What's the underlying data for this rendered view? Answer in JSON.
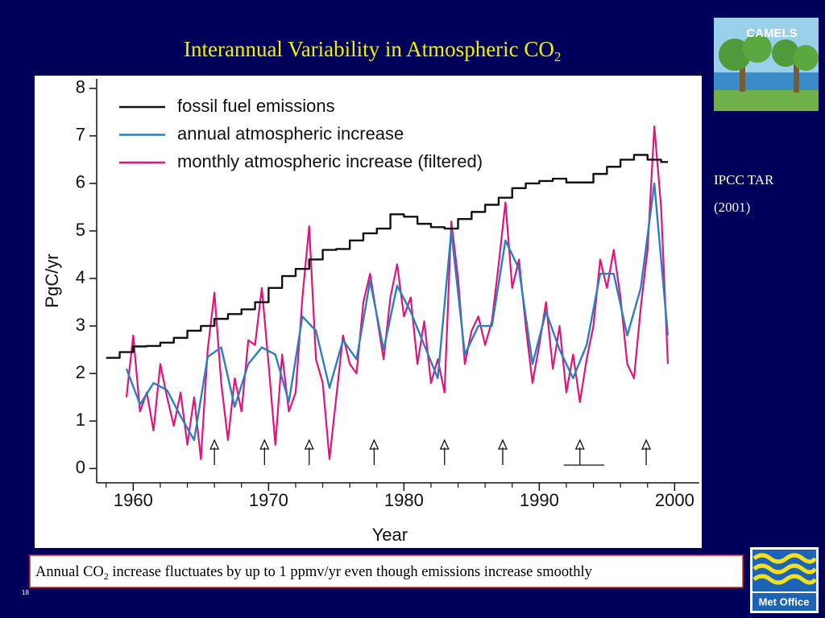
{
  "slide": {
    "title": "Interannual Variability in Atmospheric CO",
    "title_sub": "2",
    "logo_text": "CAMELS",
    "source_line1": "IPCC TAR",
    "source_line2": "(2001)",
    "caption_start": "Annual CO",
    "caption_sub": "2",
    "caption_end": " increase fluctuates by up to 1 ppmv/yr even though emissions increase smoothly",
    "page_number": "18",
    "org": "Met Office"
  },
  "chart_data": {
    "type": "line",
    "xlabel": "Year",
    "ylabel": "PgC/yr",
    "xlim": [
      1957.3,
      2001.8
    ],
    "ylim": [
      -0.3,
      8.2
    ],
    "xticks": [
      1960,
      1970,
      1980,
      1990,
      2000
    ],
    "xminorticks": [
      1958,
      1962,
      1964,
      1966,
      1968,
      1972,
      1974,
      1976,
      1978,
      1982,
      1984,
      1986,
      1988,
      1992,
      1994,
      1996,
      1998
    ],
    "yticks": [
      0,
      1,
      2,
      3,
      4,
      5,
      6,
      7,
      8
    ],
    "legend": "upper left",
    "arrows_x": [
      1966,
      1969.7,
      1973,
      1977.8,
      1983,
      1987.3,
      1993,
      1997.9
    ],
    "span_x": [
      1991.8,
      1994.8
    ],
    "series": [
      {
        "name": "fossil fuel emissions",
        "color": "#111111",
        "drawstyle": "steps-post",
        "x": [
          1958,
          1959,
          1960,
          1961,
          1962,
          1963,
          1964,
          1965,
          1966,
          1967,
          1968,
          1969,
          1970,
          1971,
          1972,
          1973,
          1974,
          1975,
          1976,
          1977,
          1978,
          1979,
          1980,
          1981,
          1982,
          1983,
          1984,
          1985,
          1986,
          1987,
          1988,
          1989,
          1990,
          1991,
          1992,
          1993,
          1994,
          1995,
          1996,
          1997,
          1998,
          1999
        ],
        "values": [
          2.33,
          2.45,
          2.57,
          2.58,
          2.65,
          2.75,
          2.9,
          3.0,
          3.15,
          3.25,
          3.35,
          3.5,
          3.8,
          4.05,
          4.2,
          4.4,
          4.6,
          4.62,
          4.8,
          4.95,
          5.05,
          5.35,
          5.3,
          5.15,
          5.08,
          5.05,
          5.25,
          5.4,
          5.55,
          5.7,
          5.9,
          6.0,
          6.05,
          6.1,
          6.02,
          6.02,
          6.2,
          6.35,
          6.5,
          6.6,
          6.5,
          6.45
        ]
      },
      {
        "name": "annual atmospheric increase",
        "color": "#2a7fc0",
        "x": [
          1959.5,
          1960.5,
          1961.5,
          1962.5,
          1963.5,
          1964.5,
          1965.5,
          1966.5,
          1967.5,
          1968.5,
          1969.5,
          1970.5,
          1971.5,
          1972.5,
          1973.5,
          1974.5,
          1975.5,
          1976.5,
          1977.5,
          1978.5,
          1979.5,
          1980.5,
          1981.5,
          1982.5,
          1983.5,
          1984.5,
          1985.5,
          1986.5,
          1987.5,
          1988.5,
          1989.5,
          1990.5,
          1991.5,
          1992.5,
          1993.5,
          1994.5,
          1995.5,
          1996.5,
          1997.5,
          1998.5,
          1999.5
        ],
        "values": [
          2.1,
          1.35,
          1.8,
          1.65,
          1.1,
          0.6,
          2.35,
          2.55,
          1.3,
          2.2,
          2.55,
          2.4,
          1.4,
          3.2,
          2.9,
          1.7,
          2.7,
          2.3,
          3.95,
          2.5,
          3.85,
          3.3,
          2.6,
          1.9,
          5.0,
          2.4,
          3.0,
          3.0,
          4.8,
          4.2,
          2.2,
          3.3,
          2.5,
          1.9,
          2.6,
          4.1,
          4.1,
          2.8,
          3.8,
          6.0,
          2.8
        ]
      },
      {
        "name": "monthly atmospheric increase (filtered)",
        "color": "#e0147a",
        "x": [
          1959.5,
          1960,
          1960.5,
          1961,
          1961.5,
          1962,
          1962.5,
          1963,
          1963.5,
          1964,
          1964.5,
          1965,
          1965.5,
          1966,
          1966.5,
          1967,
          1967.5,
          1968,
          1968.5,
          1969,
          1969.5,
          1970,
          1970.5,
          1971,
          1971.5,
          1972,
          1972.5,
          1973,
          1973.5,
          1974,
          1974.5,
          1975,
          1975.5,
          1976,
          1976.5,
          1977,
          1977.5,
          1978,
          1978.5,
          1979,
          1979.5,
          1980,
          1980.5,
          1981,
          1981.5,
          1982,
          1982.5,
          1983,
          1983.5,
          1984,
          1984.5,
          1985,
          1985.5,
          1986,
          1986.5,
          1987,
          1987.5,
          1988,
          1988.5,
          1989,
          1989.5,
          1990,
          1990.5,
          1991,
          1991.5,
          1992,
          1992.5,
          1993,
          1993.5,
          1994,
          1994.5,
          1995,
          1995.5,
          1996,
          1996.5,
          1997,
          1997.5,
          1998,
          1998.5,
          1999,
          1999.5
        ],
        "values": [
          1.5,
          2.8,
          1.2,
          1.6,
          0.8,
          2.2,
          1.5,
          0.9,
          1.6,
          0.5,
          1.5,
          0.2,
          2.5,
          3.7,
          1.8,
          0.6,
          1.9,
          1.2,
          2.7,
          2.6,
          3.8,
          2.2,
          0.5,
          2.4,
          1.2,
          1.6,
          3.6,
          5.1,
          2.3,
          1.8,
          0.2,
          1.5,
          2.8,
          2.2,
          2.0,
          3.5,
          4.1,
          3.2,
          2.3,
          3.6,
          4.3,
          3.2,
          3.6,
          2.2,
          3.1,
          1.8,
          2.3,
          1.6,
          5.2,
          4.0,
          2.2,
          2.9,
          3.2,
          2.6,
          3.1,
          4.3,
          5.6,
          3.8,
          4.4,
          3.0,
          1.8,
          2.6,
          3.5,
          2.1,
          3.0,
          1.6,
          2.4,
          1.4,
          2.3,
          3.0,
          4.4,
          3.8,
          4.6,
          3.6,
          2.2,
          1.9,
          3.4,
          4.6,
          7.2,
          5.5,
          2.2
        ]
      }
    ]
  }
}
